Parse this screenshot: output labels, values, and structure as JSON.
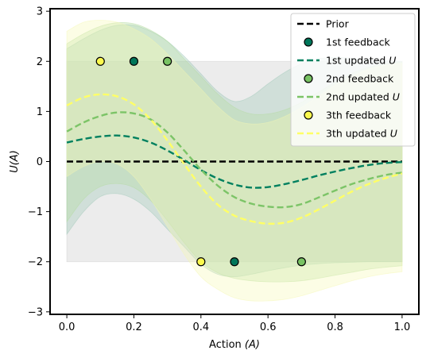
{
  "chart_data": {
    "type": "line",
    "xlabel": "Action",
    "xlabel_symbol": "(A)",
    "ylabel": "U(A)",
    "xlim": [
      -0.05,
      1.05
    ],
    "ylim": [
      -3.05,
      3.05
    ],
    "xticks": [
      0.0,
      0.2,
      0.4,
      0.6,
      0.8,
      1.0
    ],
    "xtick_labels": [
      "0.0",
      "0.2",
      "0.4",
      "0.6",
      "0.8",
      "1.0"
    ],
    "yticks": [
      -3,
      -2,
      -1,
      0,
      1,
      2,
      3
    ],
    "ytick_labels": [
      "−3",
      "−2",
      "−1",
      "0",
      "1",
      "2",
      "3"
    ],
    "grid": false,
    "legend_position": "top-right",
    "x": [
      0.0,
      0.05,
      0.1,
      0.15,
      0.2,
      0.25,
      0.3,
      0.35,
      0.4,
      0.45,
      0.5,
      0.55,
      0.6,
      0.65,
      0.7,
      0.75,
      0.8,
      0.85,
      0.9,
      0.95,
      1.0
    ],
    "series": [
      {
        "name": "Prior",
        "kind": "line",
        "style": "dashed",
        "color": "#000000",
        "values": [
          0,
          0,
          0,
          0,
          0,
          0,
          0,
          0,
          0,
          0,
          0,
          0,
          0,
          0,
          0,
          0,
          0,
          0,
          0,
          0,
          0
        ],
        "band_upper": [
          2,
          2,
          2,
          2,
          2,
          2,
          2,
          2,
          2,
          2,
          2,
          2,
          2,
          2,
          2,
          2,
          2,
          2,
          2,
          2,
          2
        ],
        "band_lower": [
          -2,
          -2,
          -2,
          -2,
          -2,
          -2,
          -2,
          -2,
          -2,
          -2,
          -2,
          -2,
          -2,
          -2,
          -2,
          -2,
          -2,
          -2,
          -2,
          -2,
          -2
        ],
        "band_color": "#c8c8c8"
      },
      {
        "name": "1st feedback",
        "kind": "scatter",
        "color": "#00765a",
        "points": [
          [
            0.2,
            2
          ],
          [
            0.5,
            -2
          ]
        ]
      },
      {
        "name": "1st updated U",
        "kind": "line",
        "style": "dashed",
        "color": "#00805f",
        "values": [
          0.38,
          0.45,
          0.5,
          0.52,
          0.48,
          0.38,
          0.22,
          0.03,
          -0.17,
          -0.34,
          -0.46,
          -0.52,
          -0.51,
          -0.45,
          -0.37,
          -0.28,
          -0.2,
          -0.13,
          -0.07,
          -0.03,
          -0.01
        ],
        "band_upper": [
          2.25,
          2.45,
          2.62,
          2.72,
          2.72,
          2.6,
          2.4,
          2.1,
          1.75,
          1.4,
          1.2,
          1.3,
          1.55,
          1.78,
          1.95,
          2.05,
          2.08,
          2.06,
          2.03,
          2.01,
          2.0
        ],
        "band_lower": [
          -1.45,
          -1.0,
          -0.7,
          -0.64,
          -0.75,
          -1.0,
          -1.35,
          -1.7,
          -2.05,
          -2.25,
          -2.3,
          -2.25,
          -2.18,
          -2.12,
          -2.07,
          -2.04,
          -2.02,
          -2.01,
          -2.0,
          -2.0,
          -2.0
        ],
        "band_color": "#9ec8b8"
      },
      {
        "name": "2nd feedback",
        "kind": "scatter",
        "color": "#78c263",
        "points": [
          [
            0.3,
            2
          ],
          [
            0.7,
            -2
          ]
        ]
      },
      {
        "name": "2nd updated U",
        "kind": "line",
        "style": "dashed",
        "color": "#7cc467",
        "values": [
          0.6,
          0.78,
          0.91,
          0.98,
          0.96,
          0.84,
          0.58,
          0.22,
          -0.16,
          -0.48,
          -0.71,
          -0.84,
          -0.9,
          -0.91,
          -0.85,
          -0.72,
          -0.58,
          -0.45,
          -0.35,
          -0.27,
          -0.22
        ],
        "band_upper": [
          2.35,
          2.55,
          2.7,
          2.77,
          2.75,
          2.62,
          2.4,
          2.05,
          1.7,
          1.35,
          1.08,
          0.95,
          0.95,
          1.03,
          1.18,
          1.38,
          1.58,
          1.76,
          1.88,
          1.95,
          1.98
        ],
        "band_lower": [
          -1.2,
          -0.75,
          -0.5,
          -0.44,
          -0.52,
          -0.78,
          -1.18,
          -1.62,
          -2.0,
          -2.22,
          -2.33,
          -2.38,
          -2.4,
          -2.4,
          -2.38,
          -2.33,
          -2.27,
          -2.21,
          -2.15,
          -2.11,
          -2.08
        ],
        "band_color": "#b4dca0"
      },
      {
        "name": "3th feedback",
        "kind": "scatter",
        "color": "#fbf94e",
        "points": [
          [
            0.1,
            2
          ],
          [
            0.4,
            -2
          ]
        ]
      },
      {
        "name": "3th updated U",
        "kind": "line",
        "style": "dashed",
        "color": "#ffff66",
        "values": [
          1.12,
          1.28,
          1.34,
          1.3,
          1.14,
          0.84,
          0.42,
          -0.05,
          -0.5,
          -0.86,
          -1.08,
          -1.19,
          -1.24,
          -1.22,
          -1.12,
          -0.96,
          -0.78,
          -0.6,
          -0.45,
          -0.33,
          -0.24
        ],
        "band_upper": [
          2.6,
          2.78,
          2.82,
          2.78,
          2.65,
          2.45,
          2.15,
          1.8,
          1.45,
          1.1,
          0.83,
          0.75,
          0.78,
          0.9,
          1.08,
          1.3,
          1.52,
          1.7,
          1.84,
          1.92,
          1.96
        ],
        "band_lower": [
          -0.3,
          -0.1,
          0.0,
          -0.05,
          -0.3,
          -0.75,
          -1.3,
          -1.85,
          -2.3,
          -2.55,
          -2.72,
          -2.78,
          -2.78,
          -2.75,
          -2.68,
          -2.58,
          -2.48,
          -2.38,
          -2.3,
          -2.24,
          -2.2
        ],
        "band_color": "#f6f8b4"
      }
    ]
  }
}
